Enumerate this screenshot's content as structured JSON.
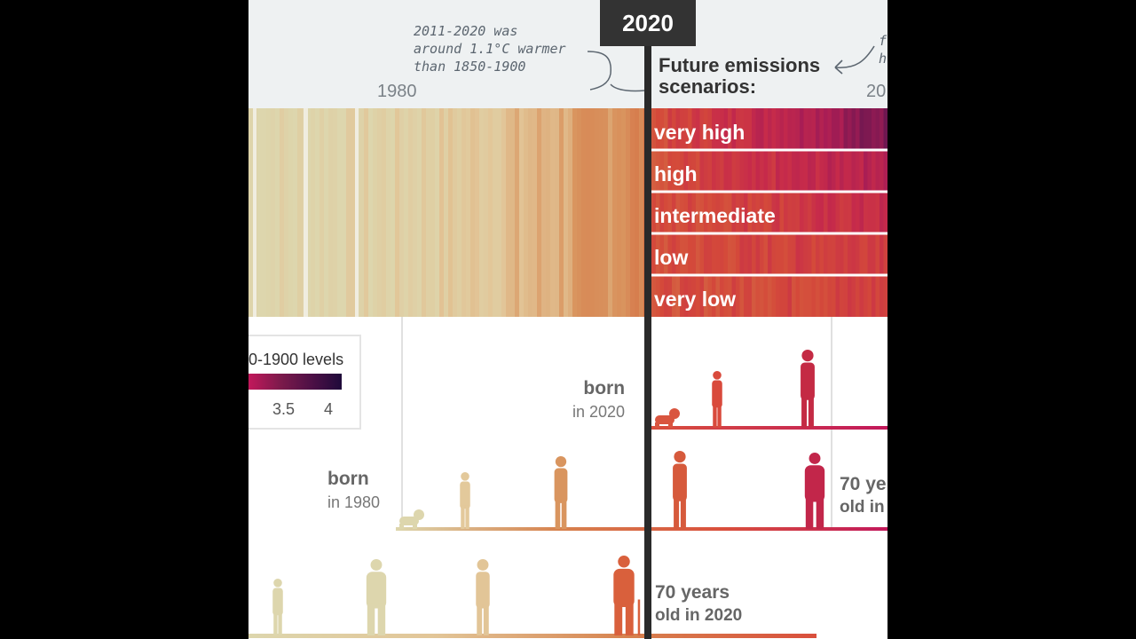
{
  "header": {
    "annotation_left": [
      "2011-2020 was",
      "around 1.1°C warmer",
      "than 1850-1900"
    ],
    "annotation_right": [
      "f",
      "h"
    ],
    "tick_1980": "1980",
    "tick_2100_partial": "20",
    "badge_2020": "2020",
    "future_title_line1": "Future emissions",
    "future_title_line2": "scenarios:"
  },
  "scenarios": [
    "very high",
    "high",
    "intermediate",
    "low",
    "very low"
  ],
  "legend": {
    "title": "0-1900 levels",
    "ticks": [
      "3.5",
      "4"
    ],
    "colors": [
      "#c2185b",
      "#7b1a4b",
      "#3a0a3f",
      "#1f0a3a"
    ]
  },
  "rows": [
    {
      "bold": "born",
      "small": "in 2020"
    },
    {
      "bold": "born",
      "small": "in 1980"
    },
    {
      "bold": "70 years",
      "small": "old in 2020"
    },
    {
      "bold": "70 ye",
      "small": "old in"
    }
  ],
  "colors": {
    "cool": "#ddd8b0",
    "mid": "#d7824e",
    "warm": "#d94f3c",
    "hot": "#c2185b",
    "very_hot": "#7b1a4b"
  }
}
